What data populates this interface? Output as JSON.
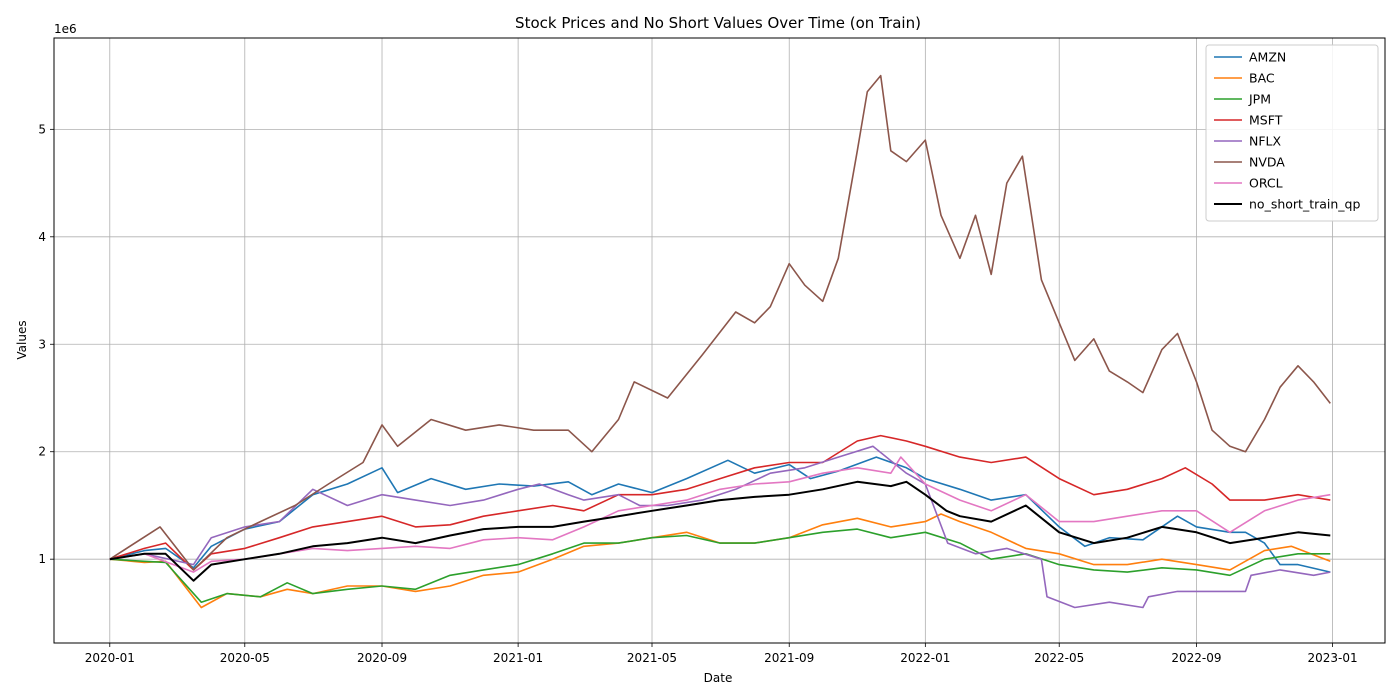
{
  "chart_data": {
    "type": "line",
    "title": "Stock Prices and No Short Values Over Time (on Train)",
    "xlabel": "Date",
    "ylabel": "Values",
    "y_scale_label": "1e6",
    "xlim": [
      "2019-11-12",
      "2023-02-17"
    ],
    "ylim": [
      0.22,
      5.85
    ],
    "grid": true,
    "legend_position": "top-right",
    "x_ticks": [
      "2020-01",
      "2020-05",
      "2020-09",
      "2021-01",
      "2021-05",
      "2021-09",
      "2022-01",
      "2022-05",
      "2022-09",
      "2023-01"
    ],
    "y_ticks": [
      1,
      2,
      3,
      4,
      5
    ],
    "series": [
      {
        "name": "AMZN",
        "color": "#1f77b4",
        "x": [
          "2020-01-01",
          "2020-02-01",
          "2020-02-20",
          "2020-03-16",
          "2020-04-01",
          "2020-05-01",
          "2020-06-01",
          "2020-07-01",
          "2020-08-01",
          "2020-09-01",
          "2020-09-15",
          "2020-10-15",
          "2020-11-15",
          "2020-12-15",
          "2021-01-15",
          "2021-02-15",
          "2021-03-08",
          "2021-04-01",
          "2021-05-01",
          "2021-06-01",
          "2021-07-08",
          "2021-08-01",
          "2021-09-01",
          "2021-09-20",
          "2021-10-15",
          "2021-11-18",
          "2021-12-15",
          "2022-01-01",
          "2022-02-01",
          "2022-03-01",
          "2022-04-01",
          "2022-05-01",
          "2022-05-24",
          "2022-06-15",
          "2022-07-15",
          "2022-08-15",
          "2022-09-01",
          "2022-10-01",
          "2022-10-15",
          "2022-11-01",
          "2022-11-15",
          "2022-12-01",
          "2022-12-30"
        ],
        "values": [
          1.0,
          1.08,
          1.1,
          0.92,
          1.12,
          1.28,
          1.35,
          1.6,
          1.7,
          1.85,
          1.62,
          1.75,
          1.65,
          1.7,
          1.68,
          1.72,
          1.6,
          1.7,
          1.62,
          1.75,
          1.92,
          1.8,
          1.88,
          1.75,
          1.82,
          1.95,
          1.85,
          1.75,
          1.65,
          1.55,
          1.6,
          1.3,
          1.12,
          1.2,
          1.18,
          1.4,
          1.3,
          1.25,
          1.25,
          1.15,
          0.95,
          0.95,
          0.88
        ]
      },
      {
        "name": "BAC",
        "color": "#ff7f0e",
        "x": [
          "2020-01-01",
          "2020-02-01",
          "2020-02-20",
          "2020-03-23",
          "2020-04-15",
          "2020-05-15",
          "2020-06-08",
          "2020-07-01",
          "2020-08-01",
          "2020-09-01",
          "2020-10-01",
          "2020-11-01",
          "2020-12-01",
          "2021-01-01",
          "2021-02-01",
          "2021-03-01",
          "2021-04-01",
          "2021-05-01",
          "2021-06-01",
          "2021-07-01",
          "2021-08-01",
          "2021-09-01",
          "2021-10-01",
          "2021-11-01",
          "2021-12-01",
          "2022-01-01",
          "2022-01-15",
          "2022-02-01",
          "2022-03-01",
          "2022-04-01",
          "2022-05-01",
          "2022-06-01",
          "2022-07-01",
          "2022-08-01",
          "2022-09-01",
          "2022-10-01",
          "2022-11-01",
          "2022-11-25",
          "2022-12-30"
        ],
        "values": [
          1.0,
          0.97,
          0.98,
          0.55,
          0.68,
          0.65,
          0.72,
          0.68,
          0.75,
          0.75,
          0.7,
          0.75,
          0.85,
          0.88,
          1.0,
          1.12,
          1.15,
          1.2,
          1.25,
          1.15,
          1.15,
          1.2,
          1.32,
          1.38,
          1.3,
          1.35,
          1.42,
          1.35,
          1.25,
          1.1,
          1.05,
          0.95,
          0.95,
          1.0,
          0.95,
          0.9,
          1.08,
          1.12,
          0.98
        ]
      },
      {
        "name": "JPM",
        "color": "#2ca02c",
        "x": [
          "2020-01-01",
          "2020-02-01",
          "2020-02-20",
          "2020-03-23",
          "2020-04-15",
          "2020-05-15",
          "2020-06-08",
          "2020-07-01",
          "2020-08-01",
          "2020-09-01",
          "2020-10-01",
          "2020-11-01",
          "2020-12-01",
          "2021-01-01",
          "2021-02-01",
          "2021-03-01",
          "2021-04-01",
          "2021-05-01",
          "2021-06-01",
          "2021-07-01",
          "2021-08-01",
          "2021-09-01",
          "2021-10-01",
          "2021-11-01",
          "2021-12-01",
          "2022-01-01",
          "2022-02-01",
          "2022-03-01",
          "2022-04-01",
          "2022-05-01",
          "2022-06-01",
          "2022-07-01",
          "2022-08-01",
          "2022-09-01",
          "2022-10-01",
          "2022-11-01",
          "2022-12-01",
          "2022-12-30"
        ],
        "values": [
          1.0,
          0.98,
          0.97,
          0.6,
          0.68,
          0.65,
          0.78,
          0.68,
          0.72,
          0.75,
          0.72,
          0.85,
          0.9,
          0.95,
          1.05,
          1.15,
          1.15,
          1.2,
          1.22,
          1.15,
          1.15,
          1.2,
          1.25,
          1.28,
          1.2,
          1.25,
          1.15,
          1.0,
          1.05,
          0.95,
          0.9,
          0.88,
          0.92,
          0.9,
          0.85,
          1.0,
          1.05,
          1.05
        ]
      },
      {
        "name": "MSFT",
        "color": "#d62728",
        "x": [
          "2020-01-01",
          "2020-02-01",
          "2020-02-20",
          "2020-03-16",
          "2020-04-01",
          "2020-05-01",
          "2020-06-01",
          "2020-07-01",
          "2020-08-01",
          "2020-09-01",
          "2020-10-01",
          "2020-11-01",
          "2020-12-01",
          "2021-01-01",
          "2021-02-01",
          "2021-03-01",
          "2021-04-01",
          "2021-05-01",
          "2021-06-01",
          "2021-07-01",
          "2021-08-01",
          "2021-09-01",
          "2021-10-01",
          "2021-11-01",
          "2021-11-22",
          "2021-12-15",
          "2022-01-01",
          "2022-02-01",
          "2022-03-01",
          "2022-04-01",
          "2022-05-01",
          "2022-06-01",
          "2022-07-01",
          "2022-08-01",
          "2022-08-22",
          "2022-09-15",
          "2022-10-01",
          "2022-11-01",
          "2022-12-01",
          "2022-12-30"
        ],
        "values": [
          1.0,
          1.1,
          1.15,
          0.9,
          1.05,
          1.1,
          1.2,
          1.3,
          1.35,
          1.4,
          1.3,
          1.32,
          1.4,
          1.45,
          1.5,
          1.45,
          1.6,
          1.6,
          1.65,
          1.75,
          1.85,
          1.9,
          1.9,
          2.1,
          2.15,
          2.1,
          2.05,
          1.95,
          1.9,
          1.95,
          1.75,
          1.6,
          1.65,
          1.75,
          1.85,
          1.7,
          1.55,
          1.55,
          1.6,
          1.55
        ]
      },
      {
        "name": "NFLX",
        "color": "#9467bd",
        "x": [
          "2020-01-01",
          "2020-02-01",
          "2020-03-16",
          "2020-04-01",
          "2020-05-01",
          "2020-06-01",
          "2020-07-01",
          "2020-08-01",
          "2020-09-01",
          "2020-10-01",
          "2020-11-01",
          "2020-12-01",
          "2021-01-01",
          "2021-01-20",
          "2021-02-15",
          "2021-03-01",
          "2021-04-01",
          "2021-04-20",
          "2021-05-15",
          "2021-06-15",
          "2021-07-15",
          "2021-08-15",
          "2021-09-15",
          "2021-10-15",
          "2021-11-15",
          "2021-12-15",
          "2022-01-01",
          "2022-01-21",
          "2022-02-15",
          "2022-03-15",
          "2022-04-15",
          "2022-04-20",
          "2022-05-15",
          "2022-06-15",
          "2022-07-15",
          "2022-07-20",
          "2022-08-15",
          "2022-09-15",
          "2022-10-15",
          "2022-10-20",
          "2022-11-15",
          "2022-12-15",
          "2022-12-30"
        ],
        "values": [
          1.0,
          1.05,
          0.95,
          1.2,
          1.3,
          1.35,
          1.65,
          1.5,
          1.6,
          1.55,
          1.5,
          1.55,
          1.65,
          1.7,
          1.6,
          1.55,
          1.6,
          1.5,
          1.5,
          1.55,
          1.65,
          1.8,
          1.85,
          1.95,
          2.05,
          1.8,
          1.7,
          1.15,
          1.05,
          1.1,
          1.0,
          0.65,
          0.55,
          0.6,
          0.55,
          0.65,
          0.7,
          0.7,
          0.7,
          0.85,
          0.9,
          0.85,
          0.88
        ]
      },
      {
        "name": "NVDA",
        "color": "#8c564b",
        "x": [
          "2020-01-01",
          "2020-02-15",
          "2020-03-16",
          "2020-04-15",
          "2020-05-15",
          "2020-06-15",
          "2020-07-15",
          "2020-08-15",
          "2020-09-01",
          "2020-09-15",
          "2020-10-15",
          "2020-11-15",
          "2020-12-15",
          "2021-01-15",
          "2021-02-15",
          "2021-03-08",
          "2021-04-01",
          "2021-04-15",
          "2021-05-15",
          "2021-06-15",
          "2021-07-15",
          "2021-08-01",
          "2021-08-15",
          "2021-09-01",
          "2021-09-15",
          "2021-10-01",
          "2021-10-15",
          "2021-11-01",
          "2021-11-10",
          "2021-11-22",
          "2021-12-01",
          "2021-12-15",
          "2022-01-01",
          "2022-01-15",
          "2022-02-01",
          "2022-02-15",
          "2022-03-01",
          "2022-03-15",
          "2022-03-29",
          "2022-04-15",
          "2022-05-01",
          "2022-05-15",
          "2022-06-01",
          "2022-06-15",
          "2022-07-01",
          "2022-07-15",
          "2022-08-01",
          "2022-08-15",
          "2022-09-01",
          "2022-09-15",
          "2022-10-01",
          "2022-10-15",
          "2022-11-01",
          "2022-11-15",
          "2022-12-01",
          "2022-12-15",
          "2022-12-30"
        ],
        "values": [
          1.0,
          1.3,
          0.9,
          1.2,
          1.35,
          1.5,
          1.7,
          1.9,
          2.25,
          2.05,
          2.3,
          2.2,
          2.25,
          2.2,
          2.2,
          2.0,
          2.3,
          2.65,
          2.5,
          2.9,
          3.3,
          3.2,
          3.35,
          3.75,
          3.55,
          3.4,
          3.8,
          4.8,
          5.35,
          5.5,
          4.8,
          4.7,
          4.9,
          4.2,
          3.8,
          4.2,
          3.65,
          4.5,
          4.75,
          3.6,
          3.2,
          2.85,
          3.05,
          2.75,
          2.65,
          2.55,
          2.95,
          3.1,
          2.65,
          2.2,
          2.05,
          2.0,
          2.3,
          2.6,
          2.8,
          2.65,
          2.45
        ]
      },
      {
        "name": "ORCL",
        "color": "#e377c2",
        "x": [
          "2020-01-01",
          "2020-02-01",
          "2020-03-16",
          "2020-04-01",
          "2020-05-01",
          "2020-06-01",
          "2020-07-01",
          "2020-08-01",
          "2020-09-01",
          "2020-10-01",
          "2020-11-01",
          "2020-12-01",
          "2021-01-01",
          "2021-02-01",
          "2021-03-01",
          "2021-04-01",
          "2021-05-01",
          "2021-06-01",
          "2021-07-01",
          "2021-08-01",
          "2021-09-01",
          "2021-10-01",
          "2021-11-01",
          "2021-12-01",
          "2021-12-10",
          "2022-01-01",
          "2022-02-01",
          "2022-03-01",
          "2022-04-01",
          "2022-05-01",
          "2022-06-01",
          "2022-07-01",
          "2022-08-01",
          "2022-09-01",
          "2022-10-01",
          "2022-11-01",
          "2022-12-01",
          "2022-12-30"
        ],
        "values": [
          1.0,
          1.05,
          0.88,
          0.98,
          1.0,
          1.05,
          1.1,
          1.08,
          1.1,
          1.12,
          1.1,
          1.18,
          1.2,
          1.18,
          1.3,
          1.45,
          1.5,
          1.55,
          1.65,
          1.7,
          1.72,
          1.8,
          1.85,
          1.8,
          1.95,
          1.7,
          1.55,
          1.45,
          1.6,
          1.35,
          1.35,
          1.4,
          1.45,
          1.45,
          1.25,
          1.45,
          1.55,
          1.6
        ]
      },
      {
        "name": "no_short_train_qp",
        "color": "#000000",
        "x": [
          "2020-01-01",
          "2020-02-01",
          "2020-02-20",
          "2020-03-16",
          "2020-04-01",
          "2020-05-01",
          "2020-06-01",
          "2020-07-01",
          "2020-08-01",
          "2020-09-01",
          "2020-10-01",
          "2020-11-01",
          "2020-12-01",
          "2021-01-01",
          "2021-02-01",
          "2021-03-01",
          "2021-04-01",
          "2021-05-01",
          "2021-06-01",
          "2021-07-01",
          "2021-08-01",
          "2021-09-01",
          "2021-10-01",
          "2021-11-01",
          "2021-12-01",
          "2021-12-15",
          "2022-01-01",
          "2022-01-20",
          "2022-02-01",
          "2022-03-01",
          "2022-04-01",
          "2022-05-01",
          "2022-06-01",
          "2022-07-01",
          "2022-08-01",
          "2022-09-01",
          "2022-10-01",
          "2022-11-01",
          "2022-12-01",
          "2022-12-30"
        ],
        "values": [
          1.0,
          1.05,
          1.05,
          0.8,
          0.95,
          1.0,
          1.05,
          1.12,
          1.15,
          1.2,
          1.15,
          1.22,
          1.28,
          1.3,
          1.3,
          1.35,
          1.4,
          1.45,
          1.5,
          1.55,
          1.58,
          1.6,
          1.65,
          1.72,
          1.68,
          1.72,
          1.6,
          1.45,
          1.4,
          1.35,
          1.5,
          1.25,
          1.15,
          1.2,
          1.3,
          1.25,
          1.15,
          1.2,
          1.25,
          1.22
        ]
      }
    ]
  }
}
